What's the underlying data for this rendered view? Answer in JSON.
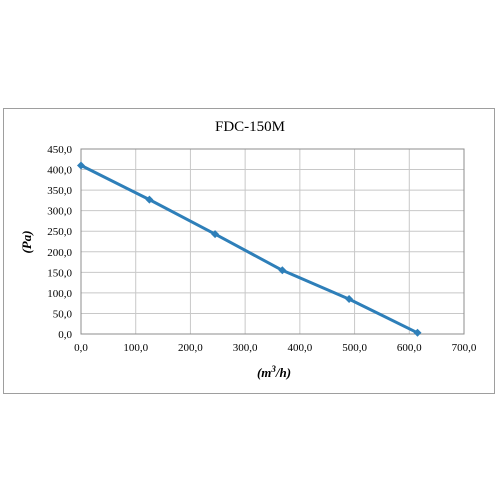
{
  "chart_data": {
    "type": "line",
    "title": "FDC-150M",
    "xlabel_main": "(m",
    "xlabel_sup": "3",
    "xlabel_tail": "/h)",
    "ylabel": "(Pa)",
    "xlim": [
      0,
      700
    ],
    "ylim": [
      0,
      450
    ],
    "x_ticks": [
      "0,0",
      "100,0",
      "200,0",
      "300,0",
      "400,0",
      "500,0",
      "600,0",
      "700,0"
    ],
    "y_ticks": [
      "0,0",
      "50,0",
      "100,0",
      "150,0",
      "200,0",
      "250,0",
      "300,0",
      "350,0",
      "400,0",
      "450,0"
    ],
    "x_tick_values": [
      0,
      100,
      200,
      300,
      400,
      500,
      600,
      700
    ],
    "y_tick_values": [
      0,
      50,
      100,
      150,
      200,
      250,
      300,
      350,
      400,
      450
    ],
    "grid": true,
    "legend": "none",
    "series": [
      {
        "color": "#2e7fb9",
        "marker": "diamond",
        "points": [
          {
            "x": 0,
            "y": 410
          },
          {
            "x": 125,
            "y": 327
          },
          {
            "x": 245,
            "y": 243
          },
          {
            "x": 368,
            "y": 155
          },
          {
            "x": 490,
            "y": 85
          },
          {
            "x": 615,
            "y": 3
          }
        ]
      }
    ]
  }
}
